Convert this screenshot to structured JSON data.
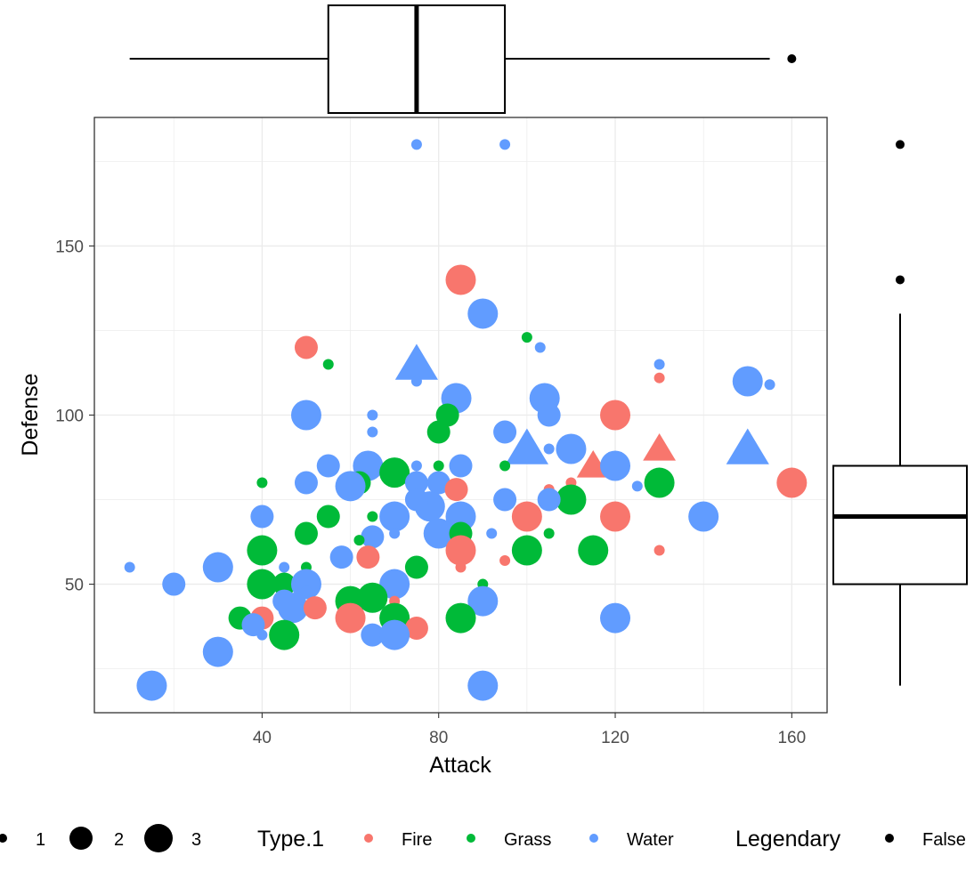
{
  "chart_data": {
    "type": "scatter",
    "x_axis": {
      "label": "Attack",
      "range": [
        2,
        168
      ],
      "ticks": [
        40,
        80,
        120,
        160
      ],
      "tick_labels": [
        "40",
        "80",
        "120",
        "160"
      ]
    },
    "y_axis": {
      "label": "Defense",
      "range": [
        12,
        188
      ],
      "ticks": [
        50,
        100,
        150
      ],
      "tick_labels": [
        "50",
        "100",
        "150"
      ]
    },
    "grid": true,
    "legend_position": "bottom",
    "colors": {
      "Fire": "#F8766D",
      "Grass": "#00BA38",
      "Water": "#619CFF",
      "boxplot": "#000000"
    },
    "legend": {
      "size_entries": [
        "1",
        "2",
        "3"
      ],
      "color_title": "Type.1",
      "color_entries": [
        "Fire",
        "Grass",
        "Water"
      ],
      "shape_title": "Legendary",
      "shape_entries": [
        "False"
      ]
    },
    "marginal_boxplots": {
      "attack": {
        "whisker_low": 10,
        "q1": 55,
        "median": 75,
        "q3": 95,
        "whisker_high": 155,
        "outliers": [
          160
        ]
      },
      "defense": {
        "whisker_low": 20,
        "q1": 50,
        "median": 70,
        "q3": 85,
        "whisker_high": 130,
        "outliers": [
          140,
          180
        ]
      }
    },
    "points": [
      {
        "type": "Water",
        "x": 75,
        "y": 180,
        "size": 1,
        "shape": "circle"
      },
      {
        "type": "Water",
        "x": 95,
        "y": 180,
        "size": 1,
        "shape": "circle"
      },
      {
        "type": "Fire",
        "x": 85,
        "y": 140,
        "size": 3,
        "shape": "circle"
      },
      {
        "type": "Water",
        "x": 90,
        "y": 130,
        "size": 3,
        "shape": "circle"
      },
      {
        "type": "Grass",
        "x": 100,
        "y": 123,
        "size": 1,
        "shape": "circle"
      },
      {
        "type": "Fire",
        "x": 50,
        "y": 120,
        "size": 2,
        "shape": "circle"
      },
      {
        "type": "Water",
        "x": 103,
        "y": 120,
        "size": 1,
        "shape": "circle"
      },
      {
        "type": "Water",
        "x": 75,
        "y": 115,
        "size": 3,
        "shape": "triangle"
      },
      {
        "type": "Grass",
        "x": 55,
        "y": 115,
        "size": 1,
        "shape": "circle"
      },
      {
        "type": "Water",
        "x": 130,
        "y": 115,
        "size": 1,
        "shape": "circle"
      },
      {
        "type": "Fire",
        "x": 130,
        "y": 111,
        "size": 1,
        "shape": "circle"
      },
      {
        "type": "Water",
        "x": 150,
        "y": 110,
        "size": 3,
        "shape": "circle"
      },
      {
        "type": "Water",
        "x": 155,
        "y": 109,
        "size": 1,
        "shape": "circle"
      },
      {
        "type": "Water",
        "x": 75,
        "y": 110,
        "size": 1,
        "shape": "circle"
      },
      {
        "type": "Water",
        "x": 84,
        "y": 105,
        "size": 3,
        "shape": "circle"
      },
      {
        "type": "Water",
        "x": 104,
        "y": 105,
        "size": 3,
        "shape": "circle"
      },
      {
        "type": "Water",
        "x": 50,
        "y": 100,
        "size": 3,
        "shape": "circle"
      },
      {
        "type": "Water",
        "x": 65,
        "y": 100,
        "size": 1,
        "shape": "circle"
      },
      {
        "type": "Grass",
        "x": 82,
        "y": 100,
        "size": 2,
        "shape": "circle"
      },
      {
        "type": "Fire",
        "x": 120,
        "y": 100,
        "size": 3,
        "shape": "circle"
      },
      {
        "type": "Water",
        "x": 105,
        "y": 100,
        "size": 2,
        "shape": "circle"
      },
      {
        "type": "Grass",
        "x": 80,
        "y": 95,
        "size": 2,
        "shape": "circle"
      },
      {
        "type": "Water",
        "x": 65,
        "y": 95,
        "size": 1,
        "shape": "circle"
      },
      {
        "type": "Water",
        "x": 95,
        "y": 95,
        "size": 2,
        "shape": "circle"
      },
      {
        "type": "Water",
        "x": 100,
        "y": 90,
        "size": 3,
        "shape": "triangle"
      },
      {
        "type": "Water",
        "x": 110,
        "y": 90,
        "size": 3,
        "shape": "circle"
      },
      {
        "type": "Water",
        "x": 150,
        "y": 90,
        "size": 3,
        "shape": "triangle"
      },
      {
        "type": "Fire",
        "x": 130,
        "y": 90,
        "size": 2,
        "shape": "triangle"
      },
      {
        "type": "Fire",
        "x": 115,
        "y": 85,
        "size": 2,
        "shape": "triangle"
      },
      {
        "type": "Water",
        "x": 105,
        "y": 90,
        "size": 1,
        "shape": "circle"
      },
      {
        "type": "Water",
        "x": 55,
        "y": 85,
        "size": 2,
        "shape": "circle"
      },
      {
        "type": "Water",
        "x": 64,
        "y": 85,
        "size": 3,
        "shape": "circle"
      },
      {
        "type": "Grass",
        "x": 70,
        "y": 83,
        "size": 3,
        "shape": "circle"
      },
      {
        "type": "Water",
        "x": 75,
        "y": 85,
        "size": 1,
        "shape": "circle"
      },
      {
        "type": "Grass",
        "x": 80,
        "y": 85,
        "size": 1,
        "shape": "circle"
      },
      {
        "type": "Water",
        "x": 85,
        "y": 85,
        "size": 2,
        "shape": "circle"
      },
      {
        "type": "Grass",
        "x": 95,
        "y": 85,
        "size": 1,
        "shape": "circle"
      },
      {
        "type": "Water",
        "x": 120,
        "y": 85,
        "size": 3,
        "shape": "circle"
      },
      {
        "type": "Grass",
        "x": 40,
        "y": 80,
        "size": 1,
        "shape": "circle"
      },
      {
        "type": "Water",
        "x": 50,
        "y": 80,
        "size": 2,
        "shape": "circle"
      },
      {
        "type": "Grass",
        "x": 62,
        "y": 80,
        "size": 2,
        "shape": "circle"
      },
      {
        "type": "Water",
        "x": 60,
        "y": 79,
        "size": 3,
        "shape": "circle"
      },
      {
        "type": "Water",
        "x": 75,
        "y": 80,
        "size": 2,
        "shape": "circle"
      },
      {
        "type": "Water",
        "x": 80,
        "y": 80,
        "size": 2,
        "shape": "circle"
      },
      {
        "type": "Fire",
        "x": 84,
        "y": 78,
        "size": 2,
        "shape": "circle"
      },
      {
        "type": "Grass",
        "x": 130,
        "y": 80,
        "size": 3,
        "shape": "circle"
      },
      {
        "type": "Fire",
        "x": 160,
        "y": 80,
        "size": 3,
        "shape": "circle"
      },
      {
        "type": "Water",
        "x": 125,
        "y": 79,
        "size": 1,
        "shape": "circle"
      },
      {
        "type": "Fire",
        "x": 105,
        "y": 78,
        "size": 1,
        "shape": "circle"
      },
      {
        "type": "Fire",
        "x": 110,
        "y": 80,
        "size": 1,
        "shape": "circle"
      },
      {
        "type": "Water",
        "x": 78,
        "y": 73,
        "size": 3,
        "shape": "circle"
      },
      {
        "type": "Water",
        "x": 75,
        "y": 75,
        "size": 2,
        "shape": "circle"
      },
      {
        "type": "Water",
        "x": 95,
        "y": 75,
        "size": 2,
        "shape": "circle"
      },
      {
        "type": "Grass",
        "x": 110,
        "y": 75,
        "size": 3,
        "shape": "circle"
      },
      {
        "type": "Water",
        "x": 105,
        "y": 75,
        "size": 2,
        "shape": "circle"
      },
      {
        "type": "Water",
        "x": 40,
        "y": 70,
        "size": 2,
        "shape": "circle"
      },
      {
        "type": "Grass",
        "x": 55,
        "y": 70,
        "size": 2,
        "shape": "circle"
      },
      {
        "type": "Grass",
        "x": 65,
        "y": 70,
        "size": 1,
        "shape": "circle"
      },
      {
        "type": "Water",
        "x": 70,
        "y": 70,
        "size": 3,
        "shape": "circle"
      },
      {
        "type": "Fire",
        "x": 100,
        "y": 70,
        "size": 3,
        "shape": "circle"
      },
      {
        "type": "Fire",
        "x": 120,
        "y": 70,
        "size": 3,
        "shape": "circle"
      },
      {
        "type": "Water",
        "x": 140,
        "y": 70,
        "size": 3,
        "shape": "circle"
      },
      {
        "type": "Water",
        "x": 85,
        "y": 70,
        "size": 3,
        "shape": "circle"
      },
      {
        "type": "Grass",
        "x": 50,
        "y": 65,
        "size": 2,
        "shape": "circle"
      },
      {
        "type": "Water",
        "x": 70,
        "y": 65,
        "size": 1,
        "shape": "circle"
      },
      {
        "type": "Water",
        "x": 80,
        "y": 65,
        "size": 3,
        "shape": "circle"
      },
      {
        "type": "Grass",
        "x": 85,
        "y": 65,
        "size": 2,
        "shape": "circle"
      },
      {
        "type": "Water",
        "x": 92,
        "y": 65,
        "size": 1,
        "shape": "circle"
      },
      {
        "type": "Grass",
        "x": 105,
        "y": 65,
        "size": 1,
        "shape": "circle"
      },
      {
        "type": "Water",
        "x": 65,
        "y": 64,
        "size": 2,
        "shape": "circle"
      },
      {
        "type": "Grass",
        "x": 62,
        "y": 63,
        "size": 1,
        "shape": "circle"
      },
      {
        "type": "Grass",
        "x": 40,
        "y": 60,
        "size": 3,
        "shape": "circle"
      },
      {
        "type": "Fire",
        "x": 85,
        "y": 60,
        "size": 3,
        "shape": "circle"
      },
      {
        "type": "Grass",
        "x": 100,
        "y": 60,
        "size": 3,
        "shape": "circle"
      },
      {
        "type": "Grass",
        "x": 115,
        "y": 60,
        "size": 3,
        "shape": "circle"
      },
      {
        "type": "Fire",
        "x": 130,
        "y": 60,
        "size": 1,
        "shape": "circle"
      },
      {
        "type": "Fire",
        "x": 64,
        "y": 58,
        "size": 2,
        "shape": "circle"
      },
      {
        "type": "Water",
        "x": 58,
        "y": 58,
        "size": 2,
        "shape": "circle"
      },
      {
        "type": "Fire",
        "x": 95,
        "y": 57,
        "size": 1,
        "shape": "circle"
      },
      {
        "type": "Water",
        "x": 10,
        "y": 55,
        "size": 1,
        "shape": "circle"
      },
      {
        "type": "Water",
        "x": 30,
        "y": 55,
        "size": 3,
        "shape": "circle"
      },
      {
        "type": "Water",
        "x": 45,
        "y": 55,
        "size": 1,
        "shape": "circle"
      },
      {
        "type": "Grass",
        "x": 50,
        "y": 55,
        "size": 1,
        "shape": "circle"
      },
      {
        "type": "Grass",
        "x": 75,
        "y": 55,
        "size": 2,
        "shape": "circle"
      },
      {
        "type": "Fire",
        "x": 85,
        "y": 55,
        "size": 1,
        "shape": "circle"
      },
      {
        "type": "Water",
        "x": 20,
        "y": 50,
        "size": 2,
        "shape": "circle"
      },
      {
        "type": "Grass",
        "x": 40,
        "y": 50,
        "size": 3,
        "shape": "circle"
      },
      {
        "type": "Grass",
        "x": 45,
        "y": 50,
        "size": 2,
        "shape": "circle"
      },
      {
        "type": "Water",
        "x": 50,
        "y": 50,
        "size": 3,
        "shape": "circle"
      },
      {
        "type": "Water",
        "x": 70,
        "y": 50,
        "size": 3,
        "shape": "circle"
      },
      {
        "type": "Grass",
        "x": 90,
        "y": 50,
        "size": 1,
        "shape": "circle"
      },
      {
        "type": "Water",
        "x": 50,
        "y": 48,
        "size": 1,
        "shape": "circle"
      },
      {
        "type": "Water",
        "x": 45,
        "y": 45,
        "size": 2,
        "shape": "circle"
      },
      {
        "type": "Grass",
        "x": 60,
        "y": 45,
        "size": 3,
        "shape": "circle"
      },
      {
        "type": "Grass",
        "x": 65,
        "y": 46,
        "size": 3,
        "shape": "circle"
      },
      {
        "type": "Fire",
        "x": 70,
        "y": 45,
        "size": 1,
        "shape": "circle"
      },
      {
        "type": "Water",
        "x": 90,
        "y": 45,
        "size": 3,
        "shape": "circle"
      },
      {
        "type": "Water",
        "x": 47,
        "y": 43,
        "size": 3,
        "shape": "circle"
      },
      {
        "type": "Fire",
        "x": 52,
        "y": 43,
        "size": 2,
        "shape": "circle"
      },
      {
        "type": "Grass",
        "x": 35,
        "y": 40,
        "size": 2,
        "shape": "circle"
      },
      {
        "type": "Fire",
        "x": 40,
        "y": 40,
        "size": 2,
        "shape": "circle"
      },
      {
        "type": "Fire",
        "x": 60,
        "y": 40,
        "size": 3,
        "shape": "circle"
      },
      {
        "type": "Grass",
        "x": 70,
        "y": 40,
        "size": 3,
        "shape": "circle"
      },
      {
        "type": "Grass",
        "x": 85,
        "y": 40,
        "size": 3,
        "shape": "circle"
      },
      {
        "type": "Water",
        "x": 120,
        "y": 40,
        "size": 3,
        "shape": "circle"
      },
      {
        "type": "Water",
        "x": 38,
        "y": 38,
        "size": 2,
        "shape": "circle"
      },
      {
        "type": "Fire",
        "x": 75,
        "y": 37,
        "size": 2,
        "shape": "circle"
      },
      {
        "type": "Water",
        "x": 40,
        "y": 35,
        "size": 1,
        "shape": "circle"
      },
      {
        "type": "Grass",
        "x": 45,
        "y": 35,
        "size": 3,
        "shape": "circle"
      },
      {
        "type": "Water",
        "x": 65,
        "y": 35,
        "size": 2,
        "shape": "circle"
      },
      {
        "type": "Water",
        "x": 70,
        "y": 35,
        "size": 3,
        "shape": "circle"
      },
      {
        "type": "Water",
        "x": 30,
        "y": 30,
        "size": 3,
        "shape": "circle"
      },
      {
        "type": "Water",
        "x": 15,
        "y": 20,
        "size": 3,
        "shape": "circle"
      },
      {
        "type": "Water",
        "x": 90,
        "y": 20,
        "size": 3,
        "shape": "circle"
      }
    ]
  }
}
